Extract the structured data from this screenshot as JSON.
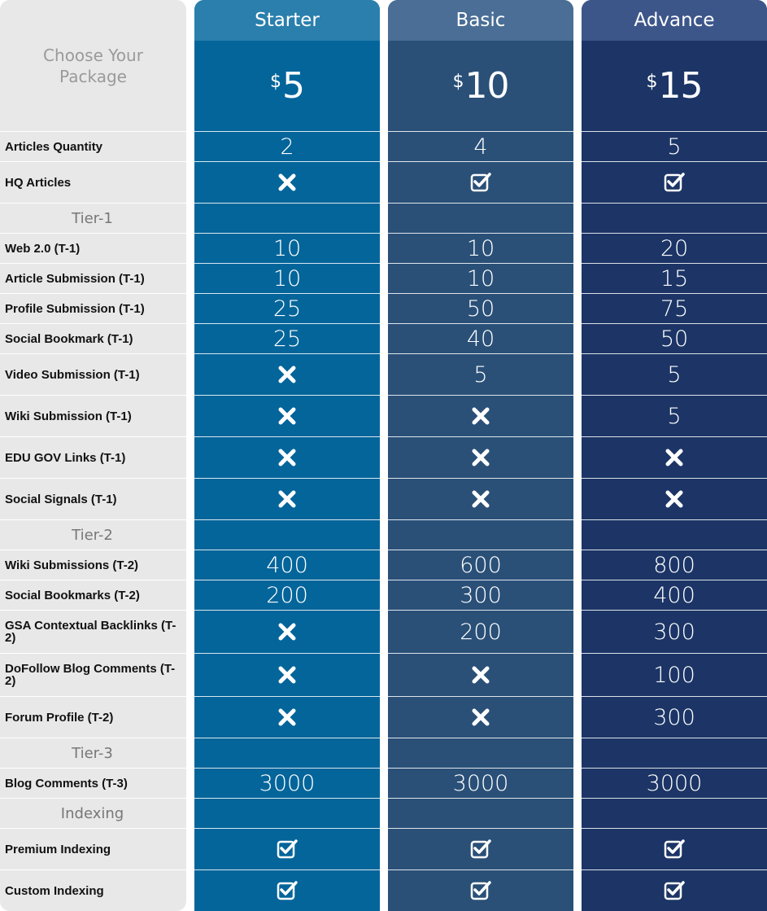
{
  "header": {
    "caption": "Choose Your Package"
  },
  "plans": [
    {
      "name": "Starter",
      "currency": "$",
      "amount": "5"
    },
    {
      "name": "Basic",
      "currency": "$",
      "amount": "10"
    },
    {
      "name": "Advance",
      "currency": "$",
      "amount": "15"
    }
  ],
  "rows": [
    {
      "label": "Articles Quantity",
      "cells": [
        "2",
        "4",
        "5"
      ]
    },
    {
      "label": "HQ Articles",
      "cells": [
        false,
        true,
        true
      ]
    },
    {
      "section": "Tier-1"
    },
    {
      "label": "Web 2.0 (T-1)",
      "cells": [
        "10",
        "10",
        "20"
      ]
    },
    {
      "label": "Article Submission (T-1)",
      "cells": [
        "10",
        "10",
        "15"
      ]
    },
    {
      "label": "Profile Submission (T-1)",
      "cells": [
        "25",
        "50",
        "75"
      ]
    },
    {
      "label": "Social Bookmark (T-1)",
      "cells": [
        "25",
        "40",
        "50"
      ]
    },
    {
      "label": "Video Submission (T-1)",
      "cells": [
        false,
        "5",
        "5"
      ]
    },
    {
      "label": "Wiki Submission (T-1)",
      "cells": [
        false,
        false,
        "5"
      ]
    },
    {
      "label": "EDU GOV Links (T-1)",
      "cells": [
        false,
        false,
        false
      ]
    },
    {
      "label": "Social Signals (T-1)",
      "cells": [
        false,
        false,
        false
      ]
    },
    {
      "section": "Tier-2"
    },
    {
      "label": "Wiki Submissions (T-2)",
      "cells": [
        "400",
        "600",
        "800"
      ]
    },
    {
      "label": "Social Bookmarks (T-2)",
      "cells": [
        "200",
        "300",
        "400"
      ]
    },
    {
      "label": "GSA Contextual Backlinks (T-2)",
      "cells": [
        false,
        "200",
        "300"
      ]
    },
    {
      "label": "DoFollow Blog Comments (T-2)",
      "cells": [
        false,
        false,
        "100"
      ]
    },
    {
      "label": "Forum Profile (T-2)",
      "cells": [
        false,
        false,
        "300"
      ]
    },
    {
      "section": "Tier-3"
    },
    {
      "label": "Blog Comments (T-3)",
      "cells": [
        "3000",
        "3000",
        "3000"
      ]
    },
    {
      "section": "Indexing"
    },
    {
      "label": "Premium Indexing",
      "cells": [
        true,
        true,
        true
      ]
    },
    {
      "label": "Custom Indexing",
      "cells": [
        true,
        true,
        true
      ]
    }
  ]
}
